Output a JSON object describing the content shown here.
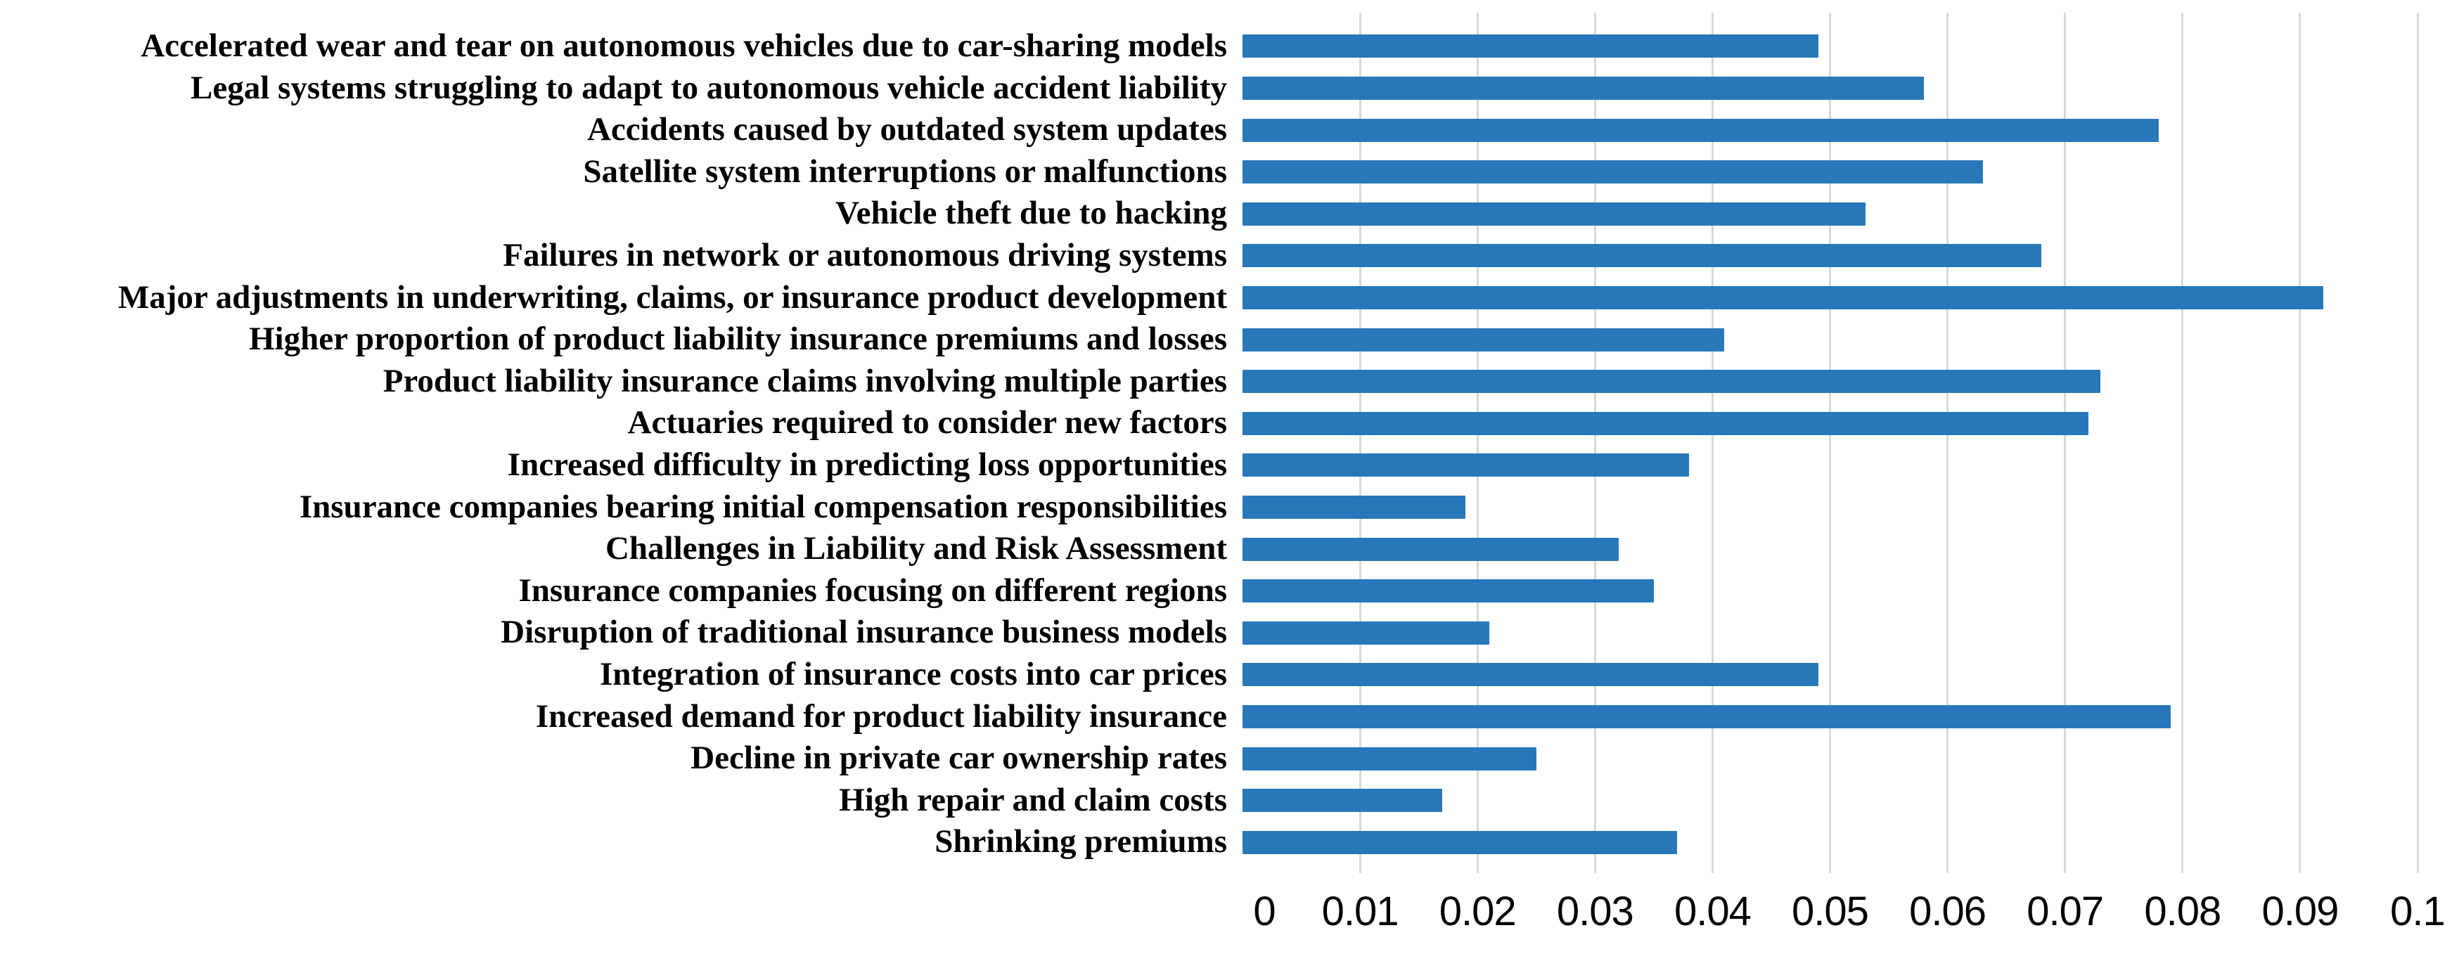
{
  "chart_data": {
    "type": "bar",
    "orientation": "horizontal",
    "title": "",
    "xlabel": "",
    "ylabel": "",
    "legend": "none",
    "grid": "vertical-major-gridlines",
    "xlim": [
      0,
      0.1
    ],
    "xticks": [
      0,
      0.01,
      0.02,
      0.03,
      0.04,
      0.05,
      0.06,
      0.07,
      0.08,
      0.09,
      0.1
    ],
    "xtick_labels": [
      "0",
      "0.01",
      "0.02",
      "0.03",
      "0.04",
      "0.05",
      "0.06",
      "0.07",
      "0.08",
      "0.09",
      "0.1"
    ],
    "categories": [
      "Accelerated wear and tear on autonomous vehicles due to car-sharing models",
      "Legal systems struggling to adapt to autonomous vehicle accident liability",
      "Accidents caused by outdated system updates",
      "Satellite system interruptions or malfunctions",
      "Vehicle theft due to hacking",
      "Failures in network or autonomous driving systems",
      "Major adjustments in underwriting, claims, or insurance product development",
      "Higher proportion of product liability insurance premiums and losses",
      "Product liability insurance claims involving multiple parties",
      "Actuaries required to consider new factors",
      "Increased difficulty in predicting loss opportunities",
      "Insurance companies bearing initial compensation responsibilities",
      "Challenges in Liability and Risk Assessment",
      "Insurance companies focusing on different regions",
      "Disruption of traditional insurance business models",
      "Integration of insurance costs into car prices",
      "Increased demand for product liability insurance",
      "Decline in private car ownership rates",
      "High repair and claim costs",
      "Shrinking premiums"
    ],
    "values": [
      0.049,
      0.058,
      0.078,
      0.063,
      0.053,
      0.068,
      0.092,
      0.041,
      0.073,
      0.072,
      0.038,
      0.019,
      0.032,
      0.035,
      0.021,
      0.049,
      0.079,
      0.025,
      0.017,
      0.037
    ],
    "colors": {
      "bar": "#2878b9",
      "gridline": "#d9d9d9",
      "background": "#ffffff",
      "text": "#000000"
    }
  }
}
